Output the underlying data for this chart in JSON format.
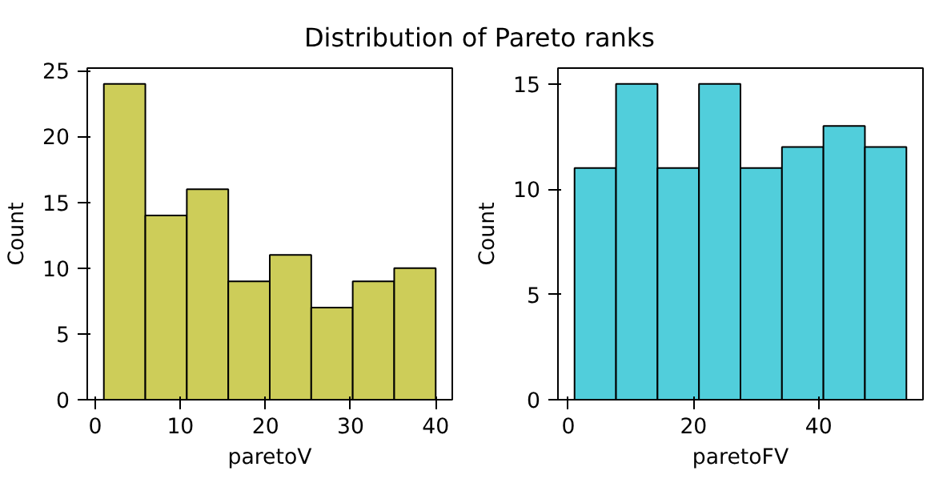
{
  "chart_data": [
    {
      "type": "histogram",
      "title": "Distribution of Pareto ranks",
      "xlabel": "paretoV",
      "ylabel": "Count",
      "color": "#cdcd59",
      "bins": [
        1,
        5.875,
        10.75,
        15.625,
        20.5,
        25.375,
        30.25,
        35.125,
        40
      ],
      "values": [
        24,
        14,
        16,
        9,
        11,
        7,
        9,
        10
      ],
      "xlim": [
        -0.95,
        41.95
      ],
      "ylim": [
        0,
        25.2
      ],
      "xticks": [
        0,
        10,
        20,
        30,
        40
      ],
      "yticks": [
        0,
        5,
        10,
        15,
        20,
        25
      ],
      "grid": false
    },
    {
      "type": "histogram",
      "xlabel": "paretoFV",
      "ylabel": "Count",
      "color": "#51cedb",
      "bins": [
        1,
        7.625,
        14.25,
        20.875,
        27.5,
        34.125,
        40.75,
        47.375,
        54
      ],
      "values": [
        11,
        15,
        11,
        15,
        11,
        12,
        13,
        12
      ],
      "xlim": [
        -1.65,
        56.65
      ],
      "ylim": [
        0,
        15.75
      ],
      "xticks": [
        0,
        20,
        40
      ],
      "yticks": [
        0,
        5,
        10,
        15
      ],
      "grid": false
    }
  ]
}
